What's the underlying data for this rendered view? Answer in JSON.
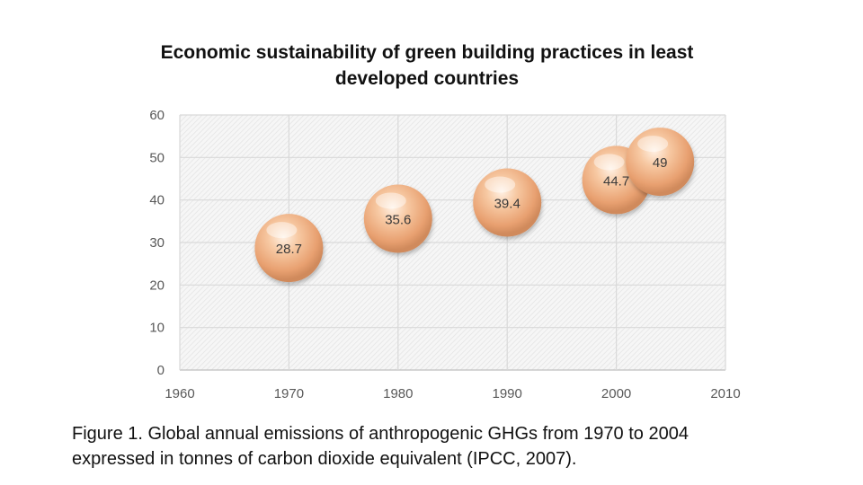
{
  "slide": {
    "title_line1": "Economic sustainability of green building practices in least",
    "title_line2": "developed countries",
    "caption_line1": "Figure 1. Global annual emissions of anthropogenic GHGs from  1970 to 2004",
    "caption_line2": "expressed in tonnes of carbon dioxide equivalent (IPCC, 2007)."
  },
  "chart_data": {
    "type": "scatter",
    "subtype": "bubble",
    "title": "",
    "xlabel": "",
    "ylabel": "",
    "xlim": [
      1960,
      2010
    ],
    "ylim": [
      0,
      60
    ],
    "x_ticks": [
      1960,
      1970,
      1980,
      1990,
      2000,
      2010
    ],
    "y_ticks": [
      0,
      10,
      20,
      30,
      40,
      50,
      60
    ],
    "grid": true,
    "legend": "none",
    "bubble_color": "#f4b183",
    "points": [
      {
        "x": 1970,
        "y": 28.7,
        "label": "28.7"
      },
      {
        "x": 1980,
        "y": 35.6,
        "label": "35.6"
      },
      {
        "x": 1990,
        "y": 39.4,
        "label": "39.4"
      },
      {
        "x": 2000,
        "y": 44.7,
        "label": "44.7"
      },
      {
        "x": 2004,
        "y": 49,
        "label": "49"
      }
    ]
  }
}
